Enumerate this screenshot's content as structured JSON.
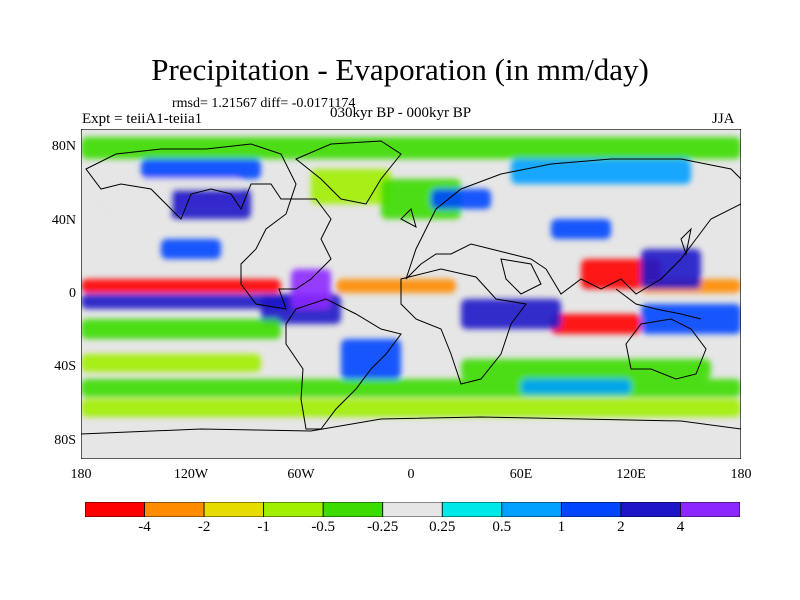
{
  "figure": {
    "title": "Precipitation - Evaporation (in mm/day)",
    "stats": "rmsd= 1.21567 diff= -0.0171174",
    "experiment": "Expt = teiiA1-teiia1",
    "period": "030kyr BP - 000kyr BP",
    "season": "JJA"
  },
  "map": {
    "lat_labels": [
      "80N",
      "40N",
      "0",
      "40S",
      "80S"
    ],
    "lon_labels": [
      "180",
      "120W",
      "60W",
      "0",
      "60E",
      "120E",
      "180"
    ],
    "ocean_neutral_color": "#e6e6e6",
    "coastline_color": "#000000"
  },
  "colorbar": {
    "labels": [
      "-4",
      "-2",
      "-1",
      "-0.5",
      "-0.25",
      "0.25",
      "0.5",
      "1",
      "2",
      "4"
    ],
    "colors": [
      "#ff0000",
      "#ff8c00",
      "#e6dc00",
      "#a0f000",
      "#3cdc00",
      "#e6e6e6",
      "#00e8e8",
      "#00a0ff",
      "#0046ff",
      "#1e14c8",
      "#8c28ff"
    ]
  }
}
